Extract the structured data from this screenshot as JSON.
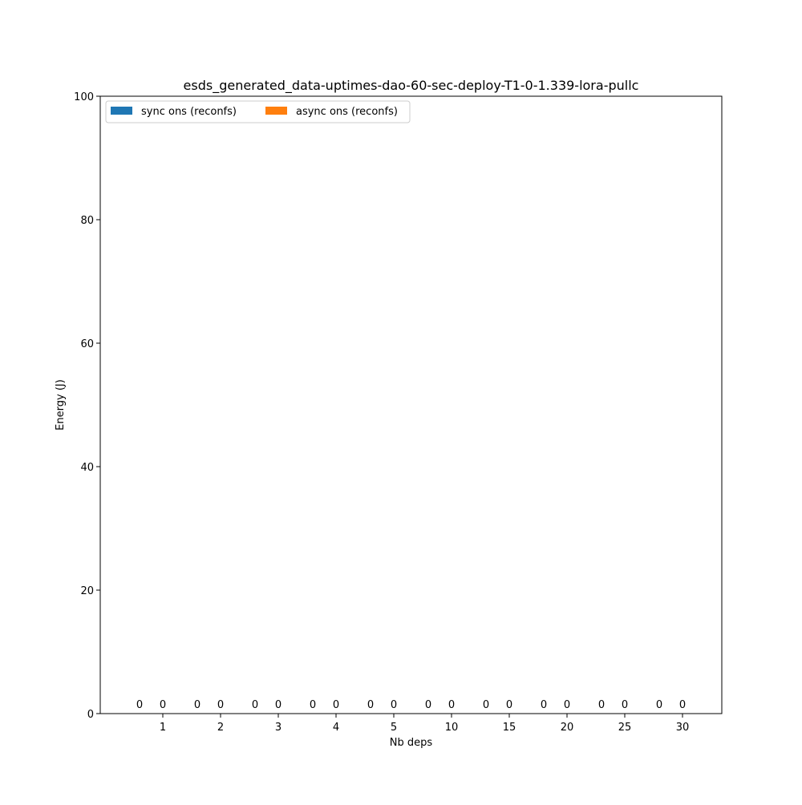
{
  "chart_data": {
    "type": "bar",
    "title": "esds_generated_data-uptimes-dao-60-sec-deploy-T1-0-1.339-lora-pullc",
    "xlabel": "Nb deps",
    "ylabel": "Energy (J)",
    "ylim": [
      0,
      100
    ],
    "yticks": [
      0,
      20,
      40,
      60,
      80,
      100
    ],
    "categories": [
      "1",
      "2",
      "3",
      "4",
      "5",
      "10",
      "15",
      "20",
      "25",
      "30"
    ],
    "series": [
      {
        "name": "sync ons (reconfs)",
        "color": "#1f77b4",
        "values": [
          0,
          0,
          0,
          0,
          0,
          0,
          0,
          0,
          0,
          0
        ]
      },
      {
        "name": "async ons (reconfs)",
        "color": "#ff7f0e",
        "values": [
          0,
          0,
          0,
          0,
          0,
          0,
          0,
          0,
          0,
          0
        ]
      }
    ],
    "bar_labels": [
      "0",
      "0",
      "0",
      "0",
      "0",
      "0",
      "0",
      "0",
      "0",
      "0",
      "0",
      "0",
      "0",
      "0",
      "0",
      "0",
      "0",
      "0",
      "0",
      "0"
    ],
    "legend_position": "top-left",
    "legend_columns": 2,
    "grid": false
  }
}
